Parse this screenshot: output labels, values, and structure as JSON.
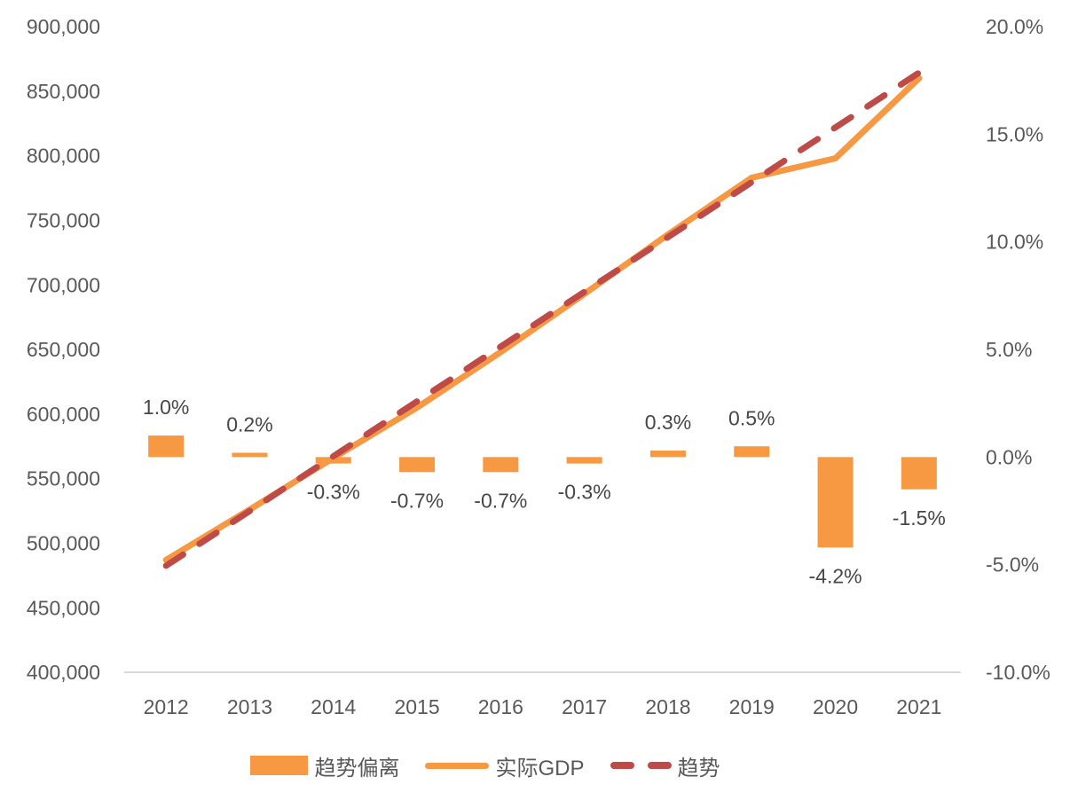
{
  "chart_data": {
    "type": "combo",
    "title": "",
    "categories": [
      "2012",
      "2013",
      "2014",
      "2015",
      "2016",
      "2017",
      "2018",
      "2019",
      "2020",
      "2021"
    ],
    "series": [
      {
        "name": "趋势偏离",
        "type": "bar",
        "axis": "right",
        "unit": "percent",
        "values": [
          1.0,
          0.2,
          -0.3,
          -0.7,
          -0.7,
          -0.3,
          0.3,
          0.5,
          -4.2,
          -1.5
        ],
        "data_labels": [
          "1.0%",
          "0.2%",
          "-0.3%",
          "-0.7%",
          "-0.7%",
          "-0.3%",
          "0.3%",
          "0.5%",
          "-4.2%",
          "-1.5%"
        ],
        "color": "#F79843"
      },
      {
        "name": "实际GDP",
        "type": "line",
        "style": "solid",
        "axis": "left",
        "values": [
          487000,
          526000,
          566000,
          605000,
          648000,
          693000,
          739000,
          783000,
          798000,
          860000
        ],
        "color": "#F79843"
      },
      {
        "name": "趋势",
        "type": "line",
        "style": "dashed",
        "axis": "left",
        "values": [
          482500,
          524900,
          567300,
          609800,
          652200,
          694600,
          737000,
          779500,
          821900,
          864300
        ],
        "color": "#BE4B48"
      }
    ],
    "left_axis": {
      "min": 400000,
      "max": 900000,
      "step": 50000,
      "tick_labels": [
        "900,000",
        "850,000",
        "800,000",
        "750,000",
        "700,000",
        "650,000",
        "600,000",
        "550,000",
        "500,000",
        "450,000",
        "400,000"
      ]
    },
    "right_axis": {
      "min": -10,
      "max": 20,
      "step": 5,
      "tick_labels": [
        "20.0%",
        "15.0%",
        "10.0%",
        "5.0%",
        "0.0%",
        "-5.0%",
        "-10.0%"
      ]
    },
    "x_axis": {
      "labels": [
        "2012",
        "2013",
        "2014",
        "2015",
        "2016",
        "2017",
        "2018",
        "2019",
        "2020",
        "2021"
      ]
    },
    "legend": {
      "position": "bottom",
      "items": [
        "趋势偏离",
        "实际GDP",
        "趋势"
      ]
    },
    "layout_hints": {
      "grid": "off",
      "baseline_only": true
    },
    "colors": {
      "orange": "#F79843",
      "trend_red": "#BE4B48",
      "axis_text": "#595959",
      "data_label_text": "#474747",
      "baseline": "#D9D9D9",
      "background": "#FFFFFF"
    }
  }
}
